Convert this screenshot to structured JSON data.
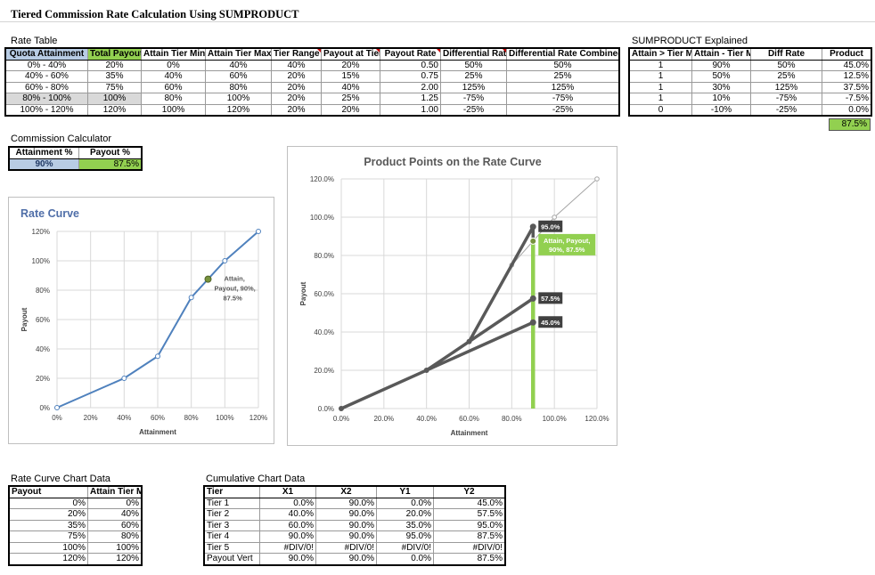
{
  "title": "Tiered Commission Rate Calculation Using SUMPRODUCT",
  "rate_table": {
    "label": "Rate Table",
    "headers": [
      "Quota Attainment",
      "Total Payout",
      "Attain Tier Min",
      "Attain Tier Max",
      "Tier Range",
      "Payout at Tier",
      "Payout Rate",
      "Differential Rate",
      "Differential Rate Combined"
    ],
    "rows": [
      [
        "0% - 40%",
        "20%",
        "0%",
        "40%",
        "40%",
        "20%",
        "0.50",
        "50%",
        "50%"
      ],
      [
        "40% - 60%",
        "35%",
        "40%",
        "60%",
        "20%",
        "15%",
        "0.75",
        "25%",
        "25%"
      ],
      [
        "60% - 80%",
        "75%",
        "60%",
        "80%",
        "20%",
        "40%",
        "2.00",
        "125%",
        "125%"
      ],
      [
        "80% - 100%",
        "100%",
        "80%",
        "100%",
        "20%",
        "25%",
        "1.25",
        "-75%",
        "-75%"
      ],
      [
        "100% - 120%",
        "120%",
        "100%",
        "120%",
        "20%",
        "20%",
        "1.00",
        "-25%",
        "-25%"
      ]
    ]
  },
  "sumproduct": {
    "label": "SUMPRODUCT Explained",
    "headers": [
      "Attain > Tier Min",
      "Attain - Tier Min",
      "Diff Rate",
      "Product"
    ],
    "rows": [
      [
        "1",
        "90%",
        "50%",
        "45.0%"
      ],
      [
        "1",
        "50%",
        "25%",
        "12.5%"
      ],
      [
        "1",
        "30%",
        "125%",
        "37.5%"
      ],
      [
        "1",
        "10%",
        "-75%",
        "-7.5%"
      ],
      [
        "0",
        "-10%",
        "-25%",
        "0.0%"
      ]
    ],
    "total": "87.5%"
  },
  "calculator": {
    "label": "Commission Calculator",
    "attain_header": "Attainment %",
    "payout_header": "Payout %",
    "attain_value": "90%",
    "payout_value": "87.5%"
  },
  "rate_curve_data": {
    "label": "Rate Curve Chart Data",
    "headers": [
      "Payout",
      "Attain Tier Max"
    ],
    "rows": [
      [
        "0%",
        "0%"
      ],
      [
        "20%",
        "40%"
      ],
      [
        "35%",
        "60%"
      ],
      [
        "75%",
        "80%"
      ],
      [
        "100%",
        "100%"
      ],
      [
        "120%",
        "120%"
      ]
    ]
  },
  "cumulative_data": {
    "label": "Cumulative Chart Data",
    "headers": [
      "Tier",
      "X1",
      "X2",
      "Y1",
      "Y2"
    ],
    "rows": [
      [
        "Tier 1",
        "0.0%",
        "90.0%",
        "0.0%",
        "45.0%"
      ],
      [
        "Tier 2",
        "40.0%",
        "90.0%",
        "20.0%",
        "57.5%"
      ],
      [
        "Tier 3",
        "60.0%",
        "90.0%",
        "35.0%",
        "95.0%"
      ],
      [
        "Tier 4",
        "90.0%",
        "90.0%",
        "95.0%",
        "87.5%"
      ],
      [
        "Tier 5",
        "#DIV/0!",
        "#DIV/0!",
        "#DIV/0!",
        "#DIV/0!"
      ],
      [
        "Payout Vert",
        "90.0%",
        "90.0%",
        "0.0%",
        "87.5%"
      ]
    ]
  },
  "colors": {
    "blue_cell": "#b8cce4",
    "green_cell": "#92d050",
    "rate_line": "#4f81bd",
    "product_line": "#595959",
    "vertical_bar": "#92d050"
  },
  "chart_data": [
    {
      "type": "line",
      "title": "Rate Curve",
      "xlabel": "Attainment",
      "ylabel": "Payout",
      "xlim": [
        0,
        120
      ],
      "ylim": [
        0,
        120
      ],
      "x_ticks": [
        "0%",
        "20%",
        "40%",
        "60%",
        "80%",
        "100%",
        "120%"
      ],
      "y_ticks": [
        "0%",
        "20%",
        "40%",
        "60%",
        "80%",
        "100%",
        "120%"
      ],
      "x": [
        0,
        40,
        60,
        80,
        100,
        120
      ],
      "y": [
        0,
        20,
        35,
        75,
        100,
        120
      ],
      "highlight_point": {
        "x": 90,
        "y": 87.5
      },
      "annotation": [
        "Attain,",
        "Payout, 90%,",
        "87.5%"
      ],
      "grid": true
    },
    {
      "type": "line",
      "title": "Product Points on the Rate Curve",
      "xlabel": "Attainment",
      "ylabel": "Payout",
      "xlim": [
        0,
        120
      ],
      "ylim": [
        0,
        120
      ],
      "x_ticks": [
        "0.0%",
        "20.0%",
        "40.0%",
        "60.0%",
        "80.0%",
        "100.0%",
        "120.0%"
      ],
      "y_ticks": [
        "0.0%",
        "20.0%",
        "40.0%",
        "60.0%",
        "80.0%",
        "100.0%",
        "120.0%"
      ],
      "curve": {
        "x": [
          0,
          40,
          60,
          80,
          100,
          120
        ],
        "y": [
          0,
          20,
          35,
          75,
          100,
          120
        ]
      },
      "segments": [
        {
          "x1": 0,
          "y1": 0,
          "x2": 90,
          "y2": 45,
          "label": "45.0%"
        },
        {
          "x1": 40,
          "y1": 20,
          "x2": 90,
          "y2": 57.5,
          "label": "57.5%"
        },
        {
          "x1": 60,
          "y1": 35,
          "x2": 90,
          "y2": 95,
          "label": "95.0%"
        },
        {
          "x1": 90,
          "y1": 95,
          "x2": 90,
          "y2": 87.5,
          "label": ""
        }
      ],
      "vertical": {
        "x": 90,
        "y1": 0,
        "y2": 87.5
      },
      "highlight_point": {
        "x": 90,
        "y": 87.5
      },
      "annotation": [
        "Attain, Payout,",
        "90%, 87.5%"
      ],
      "grid": true
    }
  ]
}
